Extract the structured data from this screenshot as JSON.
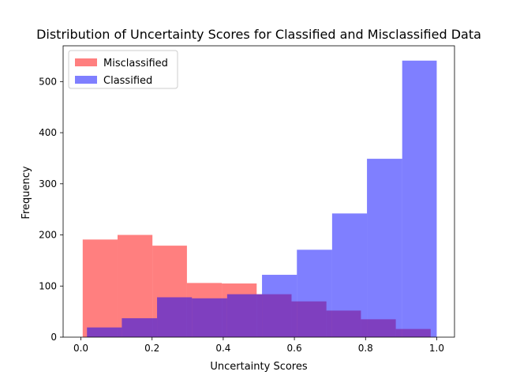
{
  "chart_data": {
    "type": "bar",
    "title": "Distribution of Uncertainty Scores for Classified and Misclassified Data",
    "xlabel": "Uncertainty Scores",
    "ylabel": "Frequency",
    "xlim": [
      -0.05,
      1.05
    ],
    "ylim": [
      0,
      570
    ],
    "xticks": [
      "0.0",
      "0.2",
      "0.4",
      "0.6",
      "0.8",
      "1.0"
    ],
    "yticks": [
      "0",
      "100",
      "200",
      "300",
      "400",
      "500"
    ],
    "legend": "top-left",
    "grid": false,
    "chart_kind": "overlapping histogram",
    "series": [
      {
        "name": "Misclassified",
        "color": "#ff0000",
        "alpha": 0.5,
        "bins": [
          {
            "x0": 0.005,
            "x1": 0.103,
            "count": 191
          },
          {
            "x0": 0.103,
            "x1": 0.201,
            "count": 200
          },
          {
            "x0": 0.201,
            "x1": 0.298,
            "count": 179
          },
          {
            "x0": 0.298,
            "x1": 0.396,
            "count": 106
          },
          {
            "x0": 0.396,
            "x1": 0.494,
            "count": 105
          },
          {
            "x0": 0.494,
            "x1": 0.592,
            "count": 84
          },
          {
            "x0": 0.592,
            "x1": 0.69,
            "count": 70
          },
          {
            "x0": 0.69,
            "x1": 0.787,
            "count": 52
          },
          {
            "x0": 0.787,
            "x1": 0.885,
            "count": 35
          },
          {
            "x0": 0.885,
            "x1": 0.983,
            "count": 16
          }
        ]
      },
      {
        "name": "Classified",
        "color": "#0000ff",
        "alpha": 0.5,
        "bins": [
          {
            "x0": 0.017,
            "x1": 0.115,
            "count": 19
          },
          {
            "x0": 0.115,
            "x1": 0.214,
            "count": 37
          },
          {
            "x0": 0.214,
            "x1": 0.312,
            "count": 78
          },
          {
            "x0": 0.312,
            "x1": 0.411,
            "count": 76
          },
          {
            "x0": 0.411,
            "x1": 0.509,
            "count": 84
          },
          {
            "x0": 0.509,
            "x1": 0.607,
            "count": 122
          },
          {
            "x0": 0.607,
            "x1": 0.706,
            "count": 171
          },
          {
            "x0": 0.706,
            "x1": 0.804,
            "count": 242
          },
          {
            "x0": 0.804,
            "x1": 0.903,
            "count": 349
          },
          {
            "x0": 0.903,
            "x1": 1.0,
            "count": 541
          }
        ]
      }
    ]
  }
}
